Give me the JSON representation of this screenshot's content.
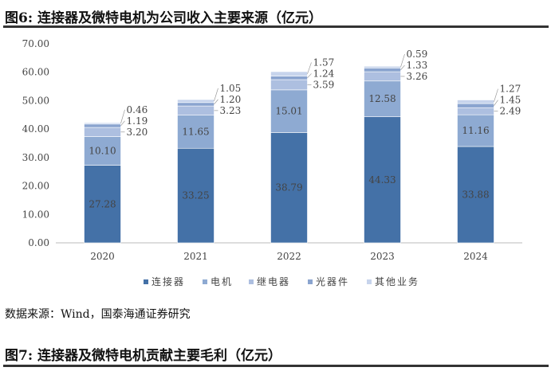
{
  "title": "图6:  连接器及微特电机为公司收入主要来源（亿元）",
  "source": "数据来源：Wind，国泰海通证券研究",
  "next_title": "图7:  连接器及微特电机贡献主要毛利（亿元）",
  "chart_data": {
    "type": "bar",
    "stacked": true,
    "categories": [
      "2020",
      "2021",
      "2022",
      "2023",
      "2024"
    ],
    "ylim": [
      0,
      70
    ],
    "yticks": [
      "0.00",
      "10.00",
      "20.00",
      "30.00",
      "40.00",
      "50.00",
      "60.00",
      "70.00"
    ],
    "legend_position": "bottom",
    "series": [
      {
        "name": "连接器",
        "color": "#4471a7",
        "values": [
          27.28,
          33.25,
          38.79,
          44.33,
          33.88
        ]
      },
      {
        "name": "电机",
        "color": "#8eaad2",
        "values": [
          10.1,
          11.65,
          15.01,
          12.58,
          11.16
        ]
      },
      {
        "name": "继电器",
        "color": "#adbfe0",
        "values": [
          3.2,
          3.23,
          3.59,
          3.26,
          2.49
        ]
      },
      {
        "name": "光器件",
        "color": "#8aa4cf",
        "values": [
          1.19,
          1.2,
          1.24,
          1.33,
          1.45
        ]
      },
      {
        "name": "其他业务",
        "color": "#c7d4ec",
        "values": [
          0.46,
          1.05,
          1.57,
          0.59,
          1.27
        ]
      }
    ]
  }
}
